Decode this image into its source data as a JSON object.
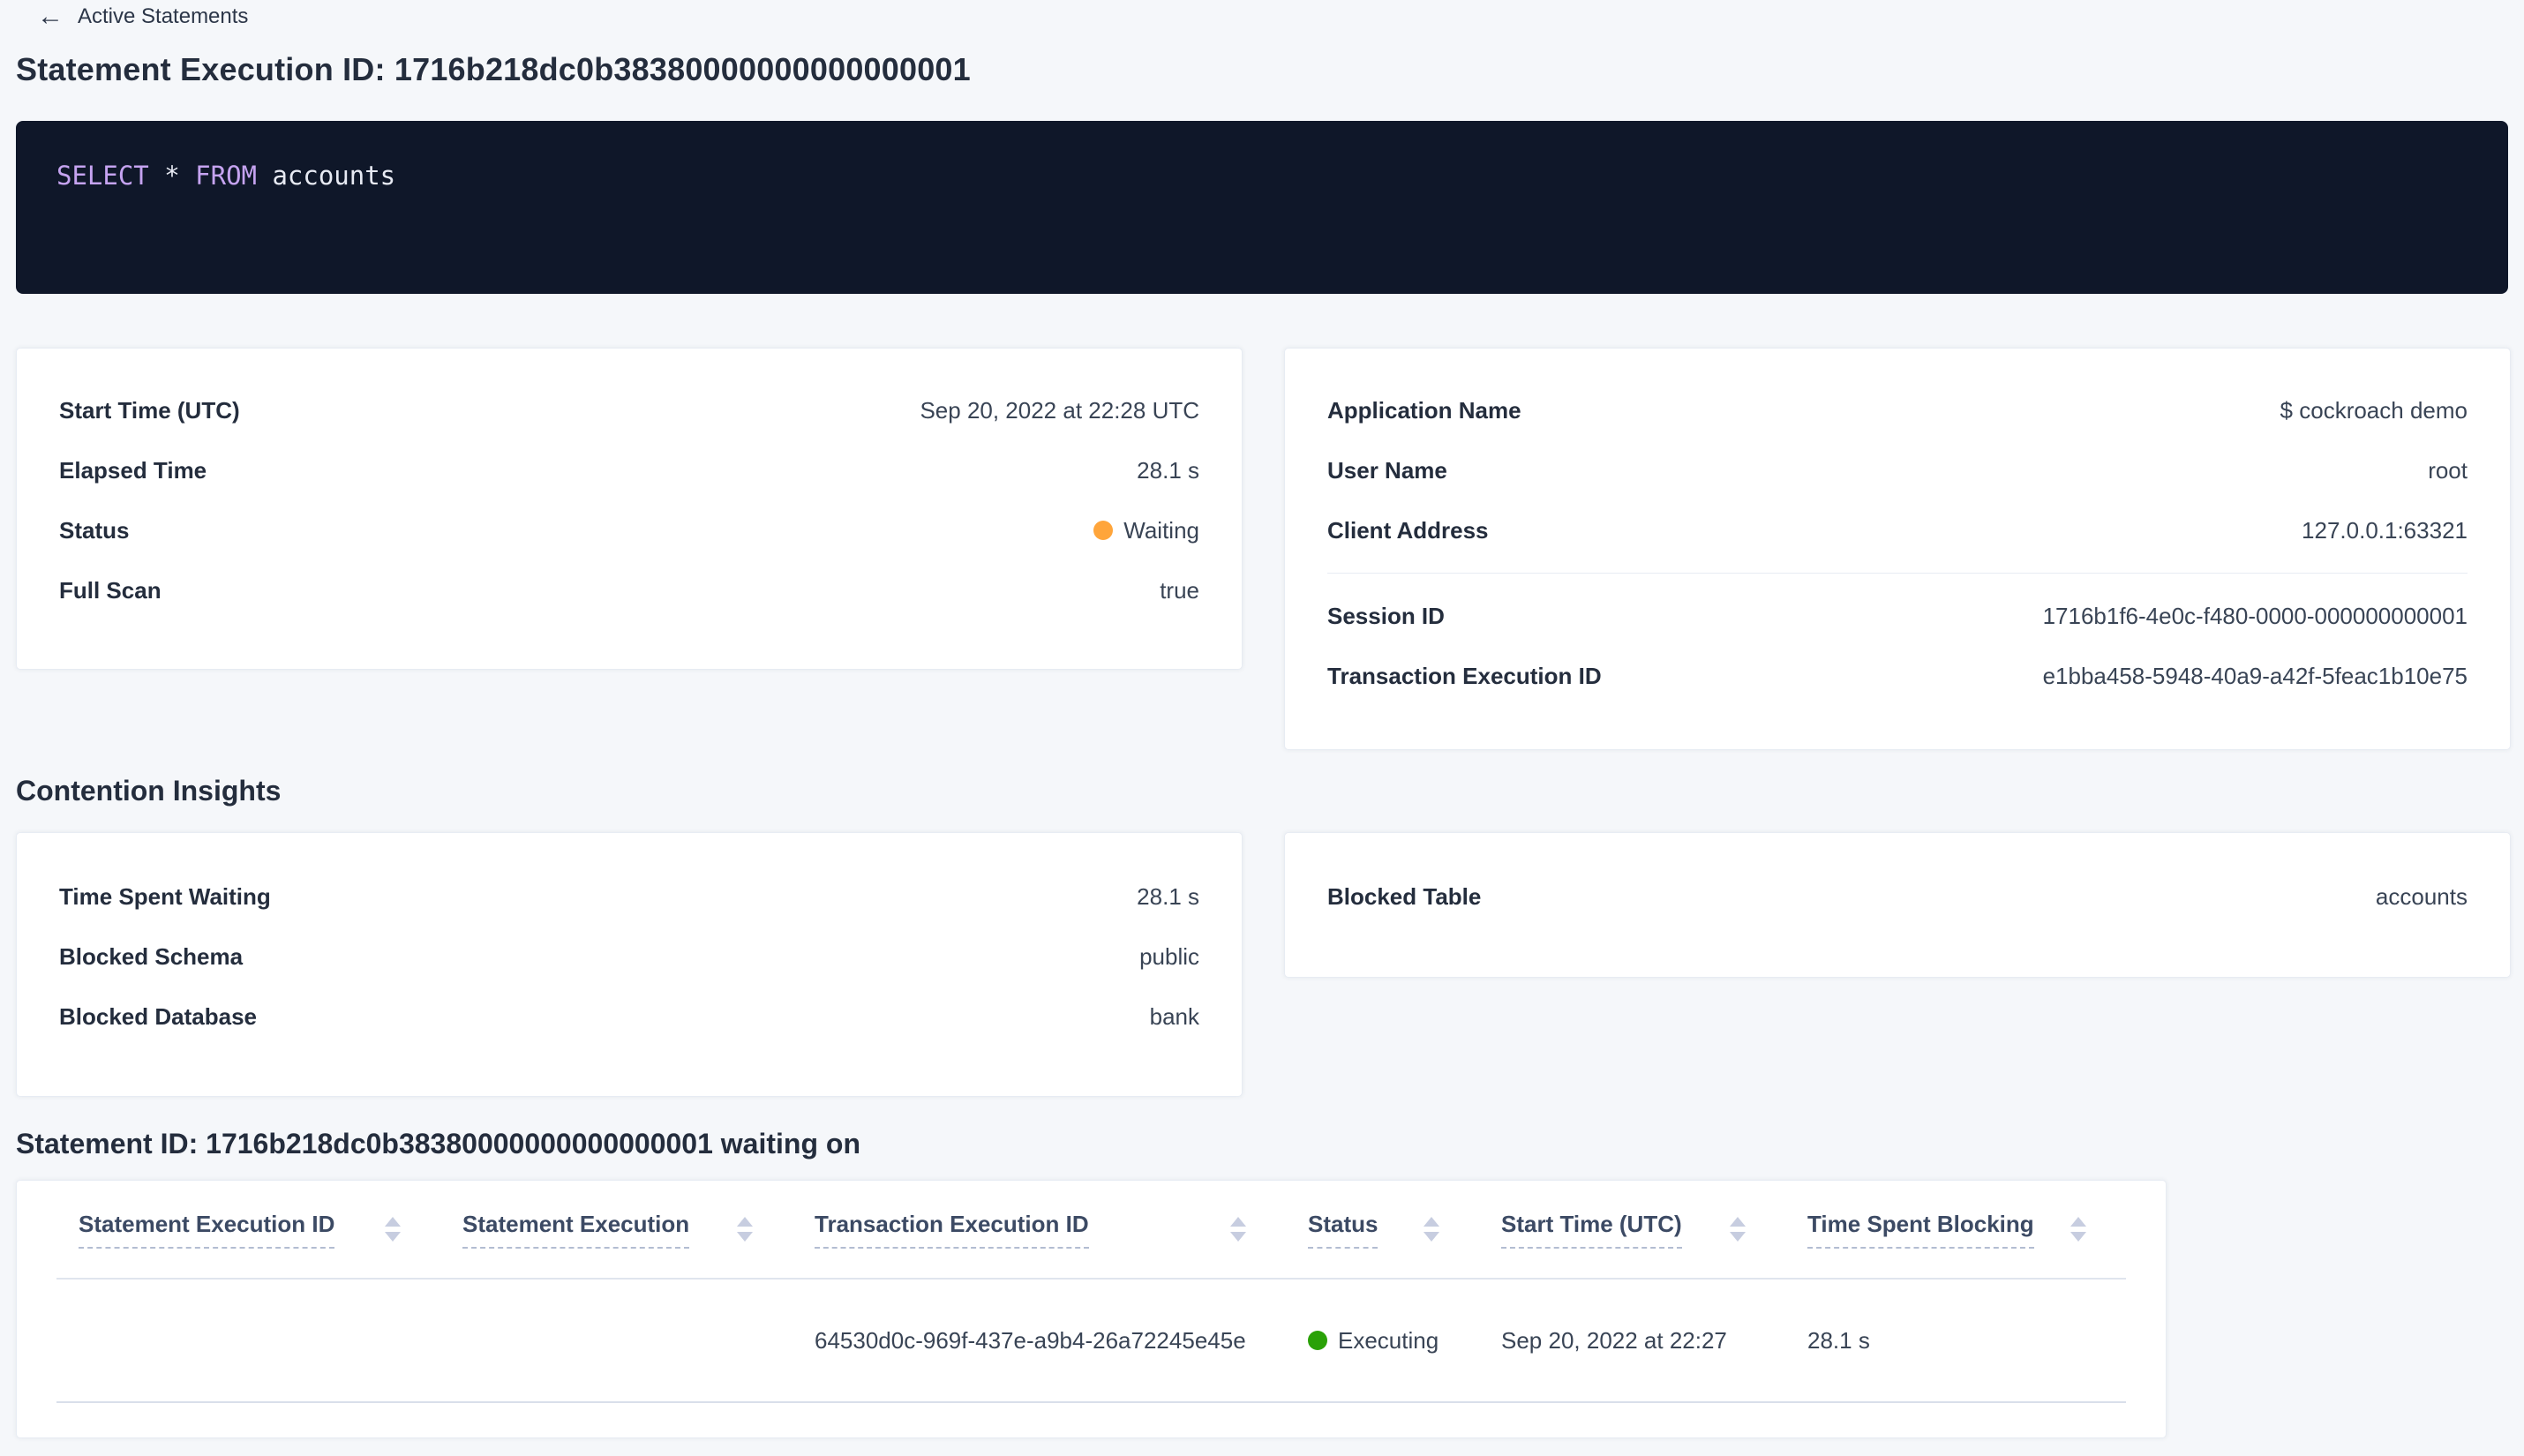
{
  "colors": {
    "page_background": "#f5f7fa",
    "link_blue": "#0b5fff",
    "status_waiting_dot": "#ffa53b",
    "status_executing_dot": "#2aa107",
    "sql_background": "#0f1729",
    "sql_keyword": "#c5a3f0",
    "sql_text": "#e7eaf3"
  },
  "icons": {
    "back_arrow": "←"
  },
  "breadcrumb": {
    "label": "Active Statements"
  },
  "title": "Statement Execution ID: 1716b218dc0b38380000000000000001",
  "sql": {
    "kw1": "SELECT",
    "mid": " * ",
    "kw2": "FROM",
    "tail": " accounts"
  },
  "execution_card": {
    "rows": [
      {
        "label": "Start Time (UTC)",
        "value": "Sep 20, 2022 at 22:28 UTC"
      },
      {
        "label": "Elapsed Time",
        "value": "28.1 s"
      },
      {
        "label": "Status",
        "value": "Waiting"
      },
      {
        "label": "Full Scan",
        "value": "true"
      }
    ]
  },
  "session_card": {
    "rows_top": [
      {
        "label": "Application Name",
        "value": "$ cockroach demo"
      },
      {
        "label": "User Name",
        "value": "root"
      },
      {
        "label": "Client Address",
        "value": "127.0.0.1:63321"
      }
    ],
    "rows_links": [
      {
        "label": "Session ID",
        "value": "1716b1f6-4e0c-f480-0000-000000000001"
      },
      {
        "label": "Transaction Execution ID",
        "value": "e1bba458-5948-40a9-a42f-5feac1b10e75"
      }
    ]
  },
  "contention": {
    "heading": "Contention Insights",
    "left_rows": [
      {
        "label": "Time Spent Waiting",
        "value": "28.1 s"
      },
      {
        "label": "Blocked Schema",
        "value": "public"
      },
      {
        "label": "Blocked Database",
        "value": "bank"
      }
    ],
    "right_rows": [
      {
        "label": "Blocked Table",
        "value": "accounts"
      }
    ]
  },
  "waiting_on": {
    "heading": "Statement ID: 1716b218dc0b38380000000000000001 waiting on",
    "columns": [
      "Statement Execution ID",
      "Statement Execution",
      "Transaction Execution ID",
      "Status",
      "Start Time (UTC)",
      "Time Spent Blocking"
    ],
    "rows": [
      {
        "statement_execution_id": "",
        "statement_execution": "",
        "transaction_execution_id": "64530d0c-969f-437e-a9b4-26a72245e45e",
        "status": "Executing",
        "start_time": "Sep 20, 2022 at 22:27",
        "time_spent_blocking": "28.1 s"
      }
    ]
  }
}
